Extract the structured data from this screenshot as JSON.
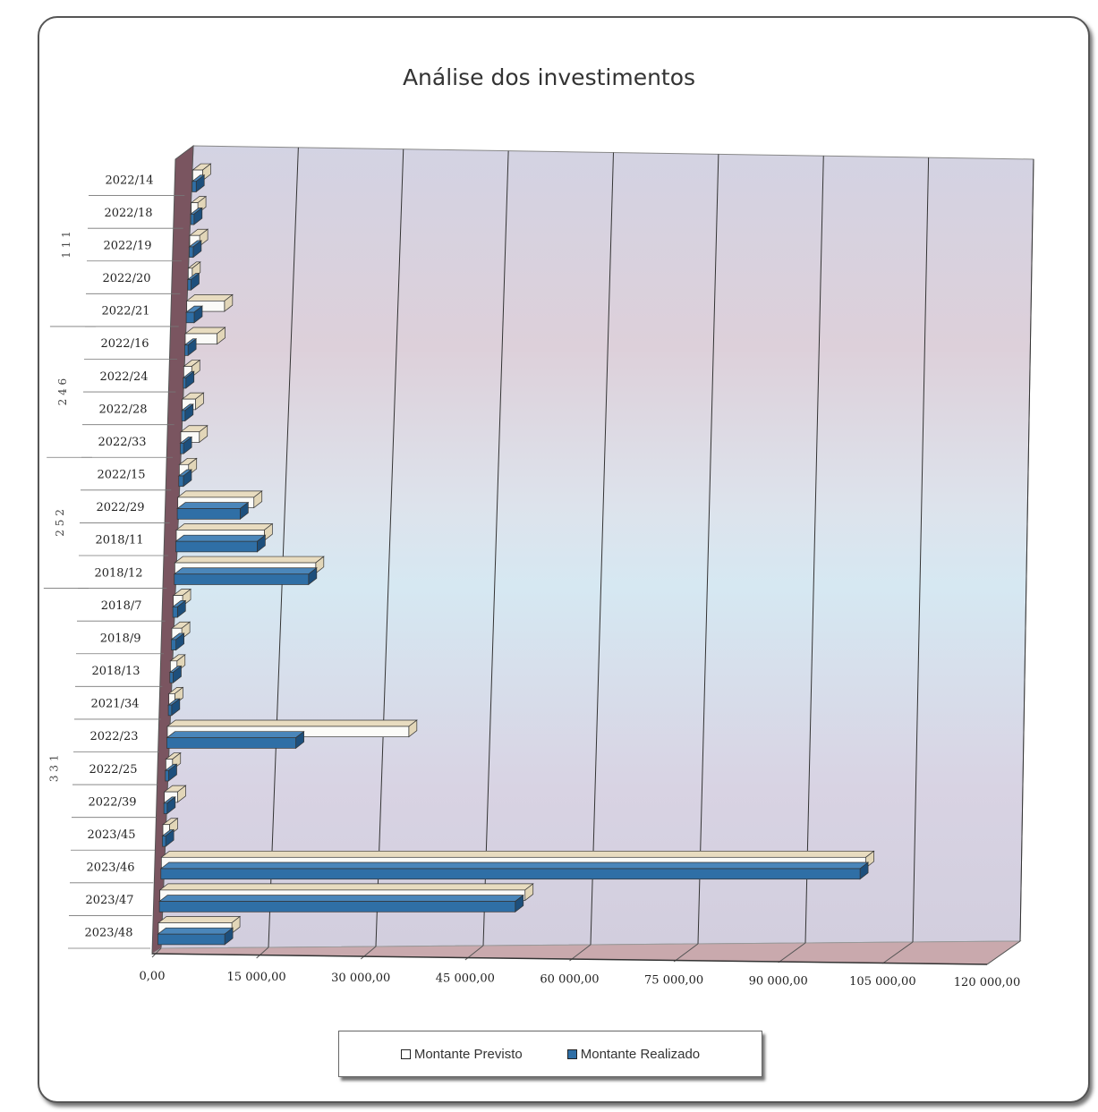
{
  "colors": {
    "previsto": "#fbfbf8",
    "previsto_edge": "#e8dcc0",
    "realizado": "#2f6fa6",
    "realizado_dark": "#1d4f7c"
  },
  "chart_data": {
    "type": "bar",
    "orientation": "horizontal",
    "title": "Análise dos investimentos",
    "xlim": [
      0,
      120000
    ],
    "xticks": [
      "0,00",
      "15 000,00",
      "30 000,00",
      "45 000,00",
      "60 000,00",
      "75 000,00",
      "90 000,00",
      "105 000,00",
      "120 000,00"
    ],
    "grid": true,
    "legend_position": "bottom",
    "categories": [
      "2022/14",
      "2022/18",
      "2022/19",
      "2022/20",
      "2022/21",
      "2022/16",
      "2022/24",
      "2022/28",
      "2022/33",
      "2022/15",
      "2022/29",
      "2018/11",
      "2018/12",
      "2018/7",
      "2018/9",
      "2018/13",
      "2021/34",
      "2022/23",
      "2022/25",
      "2022/39",
      "2023/45",
      "2023/46",
      "2023/47",
      "2023/48"
    ],
    "groups": [
      {
        "label": "111",
        "categories": [
          "2022/14",
          "2022/18",
          "2022/19",
          "2022/20",
          "2022/21"
        ]
      },
      {
        "label": "246",
        "categories": [
          "2022/16",
          "2022/24",
          "2022/28",
          "2022/33"
        ]
      },
      {
        "label": "252",
        "categories": [
          "2022/15",
          "2022/29",
          "2018/11",
          "2018/12"
        ]
      },
      {
        "label": "331",
        "categories": [
          "2018/7",
          "2018/9",
          "2018/13",
          "2021/34",
          "2022/23",
          "2022/25",
          "2022/39",
          "2023/45",
          "2023/46",
          "2023/47",
          "2023/48"
        ]
      }
    ],
    "series": [
      {
        "name": "Montante Previsto",
        "values": [
          1500,
          1000,
          1500,
          600,
          5700,
          4800,
          1200,
          2000,
          2800,
          1400,
          11500,
          13300,
          21300,
          1400,
          1500,
          1000,
          900,
          36500,
          1000,
          2000,
          1000,
          106500,
          55200,
          11100
        ]
      },
      {
        "name": "Montante Realizado",
        "values": [
          600,
          500,
          600,
          500,
          1200,
          500,
          400,
          500,
          500,
          700,
          9500,
          12300,
          20300,
          700,
          700,
          500,
          500,
          19500,
          500,
          500,
          500,
          105700,
          53800,
          10100
        ]
      }
    ]
  }
}
